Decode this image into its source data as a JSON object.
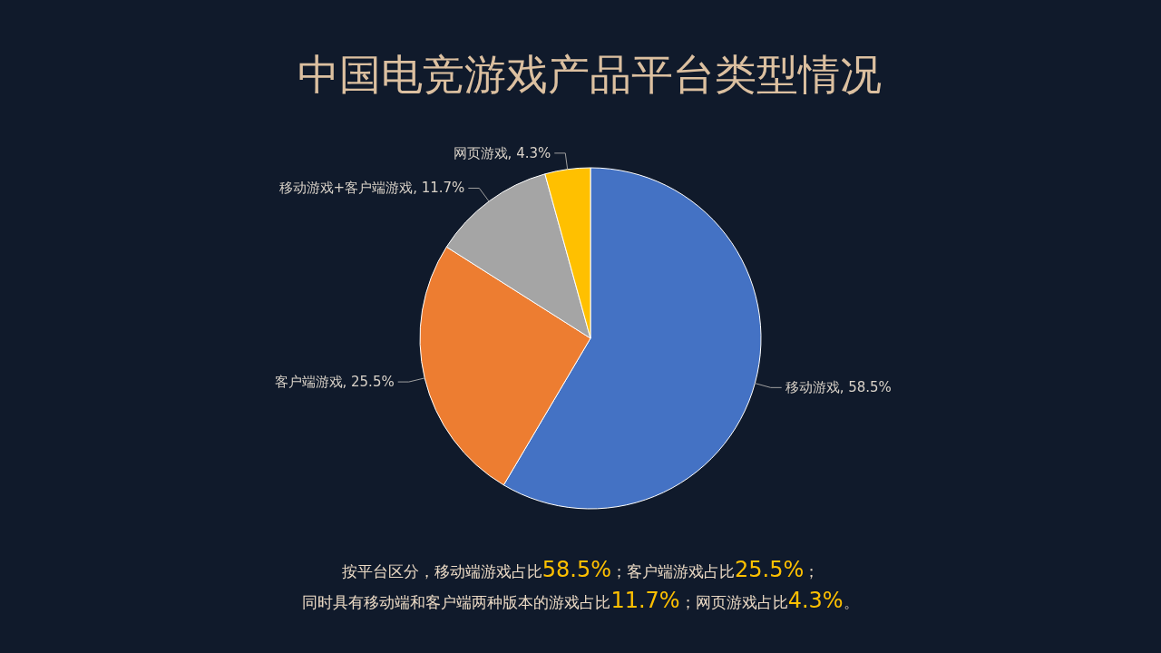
{
  "chart_data": {
    "type": "pie",
    "title": "中国电竞游戏产品平台类型情况",
    "categories": [
      "移动游戏",
      "客户端游戏",
      "移动游戏+客户端游戏",
      "网页游戏"
    ],
    "values": [
      58.5,
      25.5,
      11.7,
      4.3
    ],
    "colors": [
      "#4472c4",
      "#ed7d31",
      "#a5a5a5",
      "#ffc000"
    ],
    "value_labels": [
      ", 58.5%",
      ", 25.5%",
      ", 11.7%",
      ", 4.3%"
    ],
    "annotations": [
      "按平台区分，移动端游戏占比**58.5%**；客户端游戏占比**25.5%**；",
      "同时具有移动端和客户端两种版本的游戏占比**11.7%**；网页游戏占比**4.3%**。"
    ]
  }
}
